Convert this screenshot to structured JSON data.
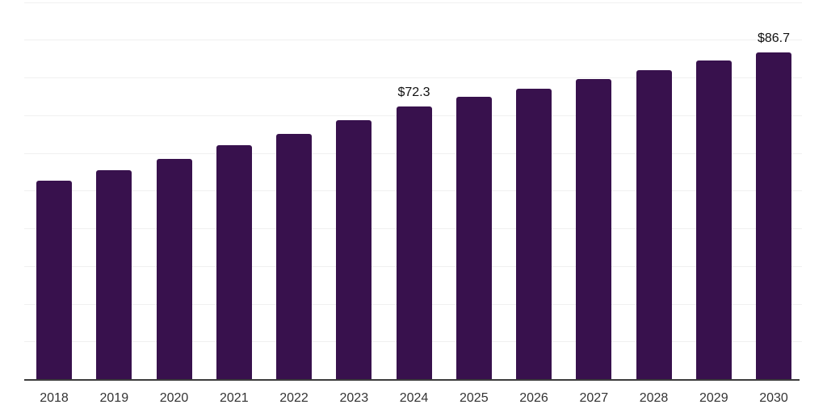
{
  "chart_data": {
    "type": "bar",
    "categories": [
      "2018",
      "2019",
      "2020",
      "2021",
      "2022",
      "2023",
      "2024",
      "2025",
      "2026",
      "2027",
      "2028",
      "2029",
      "2030"
    ],
    "values": [
      52.6,
      55.4,
      58.4,
      62.0,
      65.1,
      68.6,
      72.3,
      74.8,
      77.1,
      79.5,
      81.9,
      84.5,
      86.7
    ],
    "data_labels": {
      "2024": "$72.3",
      "2030": "$86.7"
    },
    "title": "",
    "xlabel": "",
    "ylabel": "",
    "ylim": [
      0,
      100
    ],
    "gridline_values": [
      10,
      20,
      30,
      40,
      50,
      60,
      70,
      80,
      90,
      100
    ],
    "grid": "horizontal",
    "legend": "none",
    "colors": {
      "bar": "#38114d",
      "gridline": "#f0f0f0",
      "axis": "#3c3c3c",
      "tick_label": "#333333",
      "value_label": "#111111",
      "background": "#ffffff"
    }
  }
}
